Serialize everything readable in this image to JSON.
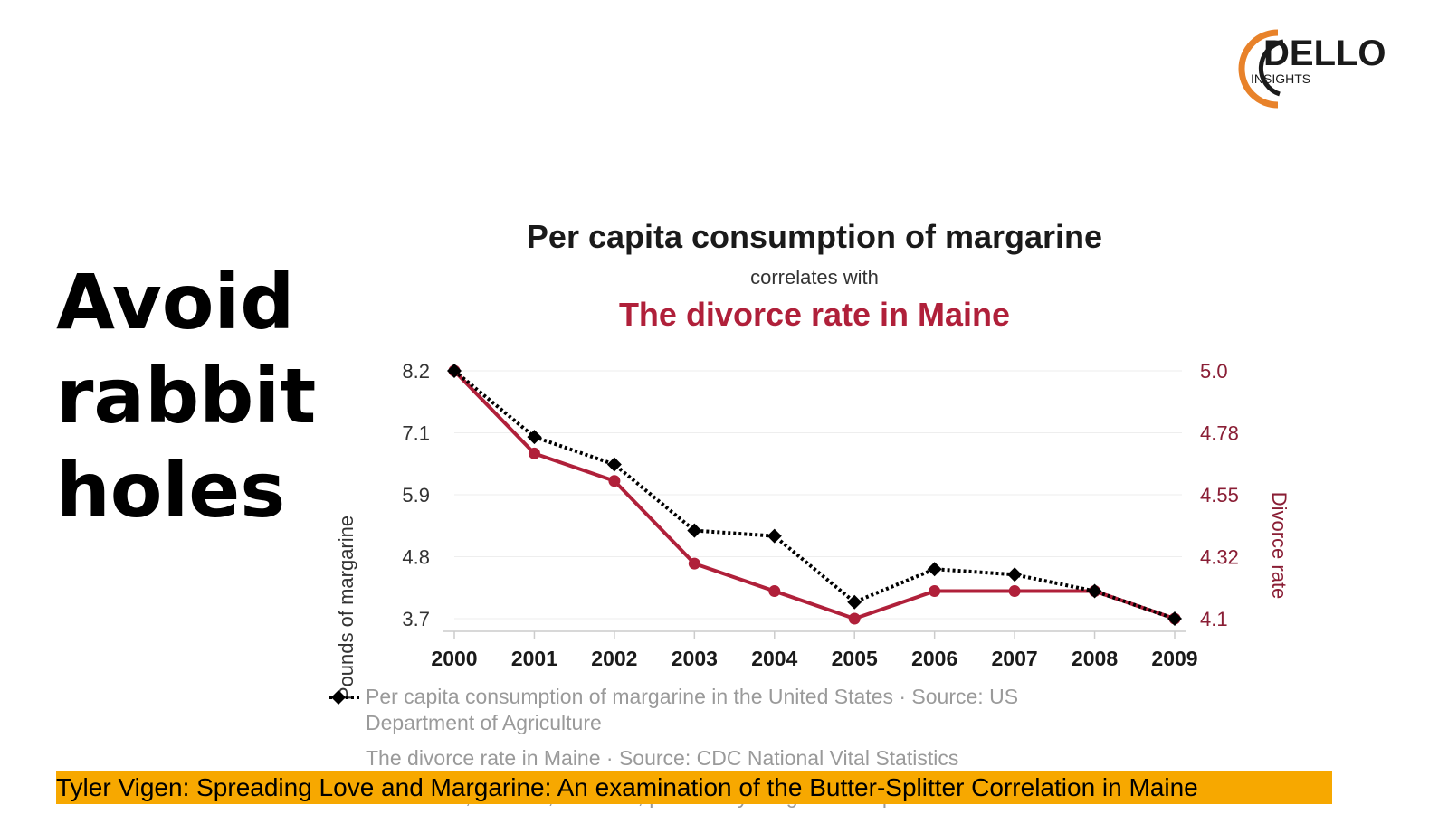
{
  "slide": {
    "heading": "Avoid rabbit holes",
    "caption": "Tyler Vigen: Spreading Love and Margarine: An examination of the Butter-Splitter Correlation in Maine"
  },
  "logo": {
    "name": "DELLO",
    "sub": "INSIGHTS",
    "accent_color": "#e8822a",
    "text_color": "#1a1a1a"
  },
  "chart_data": {
    "type": "line",
    "title": "Per capita consumption of margarine",
    "subtitle": "correlates with",
    "title2": "The divorce rate in Maine",
    "ylabel": "Pounds of margarine",
    "ylabel_right": "Divorce rate",
    "x": [
      "2000",
      "2001",
      "2002",
      "2003",
      "2004",
      "2005",
      "2006",
      "2007",
      "2008",
      "2009"
    ],
    "y_ticks": [
      "8.2",
      "7.1",
      "5.9",
      "4.8",
      "3.7"
    ],
    "y_ticks_right": [
      "5.0",
      "4.78",
      "4.55",
      "4.32",
      "4.1"
    ],
    "ylim": [
      3.7,
      8.2
    ],
    "ylim_right": [
      4.1,
      5.0
    ],
    "grid": true,
    "series": [
      {
        "name": "Per capita consumption of margarine in the United States · Source: US Department of Agriculture",
        "axis": "left",
        "color": "#000000",
        "style": "dotted",
        "marker": "diamond",
        "values": [
          8.2,
          7.0,
          6.5,
          5.3,
          5.2,
          4.0,
          4.6,
          4.5,
          4.2,
          3.7
        ]
      },
      {
        "name": "The divorce rate in Maine · Source: CDC National Vital Statistics",
        "axis": "right",
        "color": "#b0203a",
        "style": "solid",
        "marker": "circle",
        "values": [
          5.0,
          4.7,
          4.6,
          4.3,
          4.2,
          4.1,
          4.2,
          4.2,
          4.2,
          4.1
        ]
      }
    ],
    "footer": "2000-2009, r=0.992, r²=0.985, p<0.01 · tylervigen.com/spurious/correlation/5920"
  }
}
